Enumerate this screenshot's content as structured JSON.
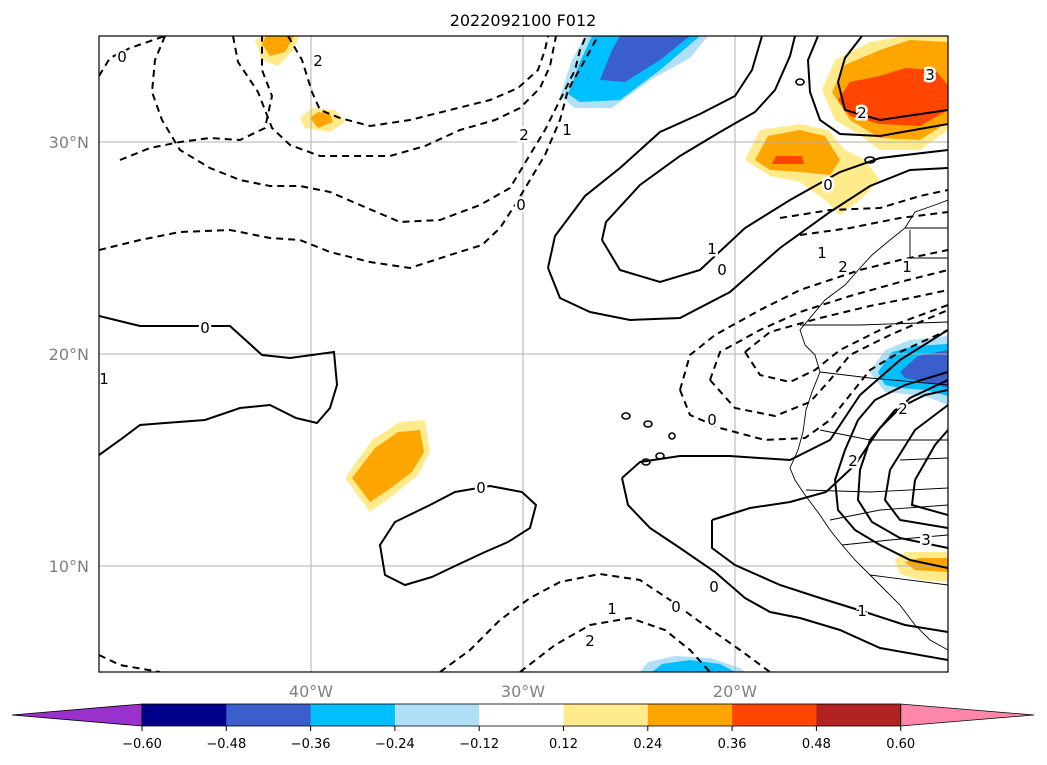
{
  "title": "2022092100 F012",
  "lat_labels": [
    "30°N",
    "20°N",
    "10°N"
  ],
  "lon_labels": [
    "40°W",
    "30°W",
    "20°W"
  ],
  "colorbar": {
    "ticks": [
      "−0.60",
      "−0.48",
      "−0.36",
      "−0.24",
      "−0.12",
      "0.12",
      "0.24",
      "0.36",
      "0.48",
      "0.60"
    ],
    "colors": [
      "#9932cc",
      "#00008b",
      "#3a5fcd",
      "#00bfff",
      "#afe0f7",
      "#ffffff",
      "#ffeb8c",
      "#ffa500",
      "#ff4500",
      "#b22222",
      "#ff88aa"
    ],
    "extend": "both"
  },
  "contour_labels": [
    "0",
    "2",
    "0",
    "2",
    "1",
    "0",
    "1",
    "0",
    "1",
    "2",
    "0",
    "0",
    "0",
    "0",
    "1",
    "2",
    "0",
    "1",
    "2",
    "3",
    "2",
    "2",
    "3",
    "1",
    "1"
  ],
  "colors": {
    "contour": "#000000",
    "grid": "#b0b0b0",
    "coast": "#000000"
  }
}
